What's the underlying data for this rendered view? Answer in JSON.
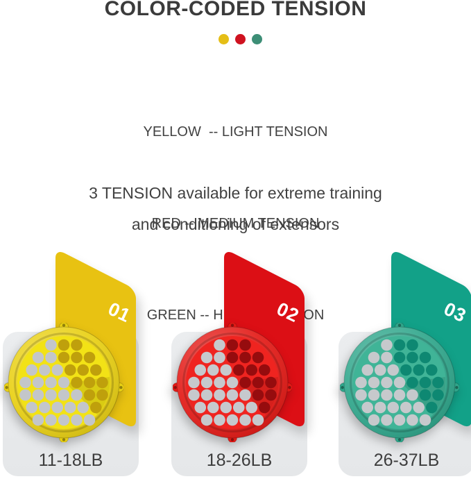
{
  "title": "COLOR-CODED TENSION",
  "dots": [
    {
      "name": "yellow-dot",
      "color": "#e5be16"
    },
    {
      "name": "red-dot",
      "color": "#cf1220"
    },
    {
      "name": "green-dot",
      "color": "#3d8e76"
    }
  ],
  "legend": {
    "line1": "YELLOW  -- LIGHT TENSION",
    "line2": "RED -- MEDIUM TENSION",
    "line3": "GREEN -- HEAVY TENSION"
  },
  "description": {
    "line1": "3 TENSION available for extreme training",
    "line2": "and conditioning of extensors"
  },
  "products": [
    {
      "number": "01",
      "weight": "11-18LB",
      "tension": "light",
      "colors": {
        "card": "#e8c212",
        "rim": "#e9d013",
        "face": "#f2e216",
        "hole_dark": "#bfa00c",
        "hole_gray": "#c3c6ca"
      }
    },
    {
      "number": "02",
      "weight": "18-26LB",
      "tension": "medium",
      "colors": {
        "card": "#dc0f15",
        "rim": "#e31a16",
        "face": "#ef2420",
        "hole_dark": "#960c0e",
        "hole_gray": "#c6c9cd"
      }
    },
    {
      "number": "03",
      "weight": "26-37LB",
      "tension": "heavy",
      "colors": {
        "card": "#12a188",
        "rim": "#2fa68b",
        "face": "#40b497",
        "hole_dark": "#0e8872",
        "hole_gray": "#c6c9cc"
      }
    }
  ],
  "gray_card_color": "#e9ebed",
  "text_color": "#3e3e3e",
  "background_color": "#ffffff"
}
